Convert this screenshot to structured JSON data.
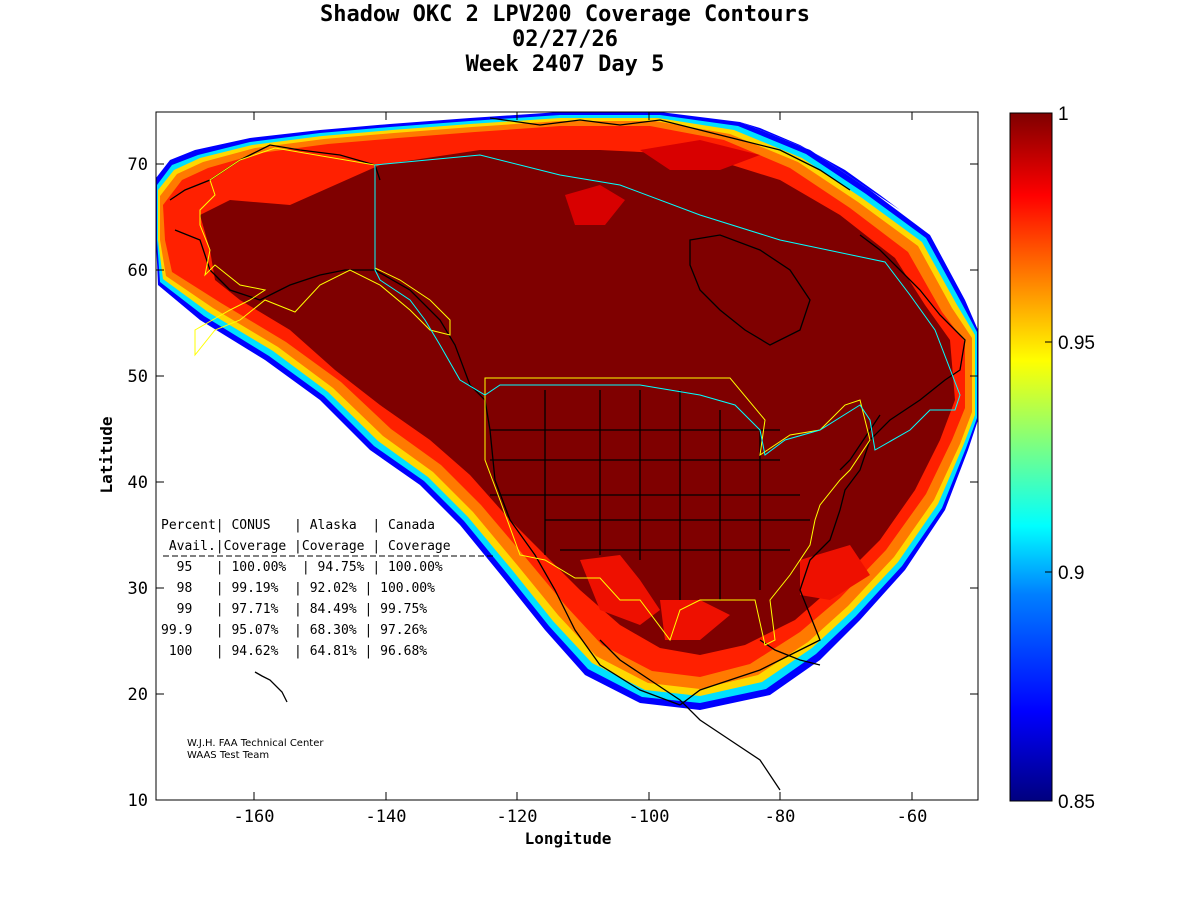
{
  "title": {
    "line1": "Shadow OKC 2 LPV200 Coverage Contours",
    "line2": "02/27/26",
    "line3": "Week 2407 Day 5"
  },
  "axes": {
    "xlabel": "Longitude",
    "ylabel": "Latitude",
    "xticks": [
      "-160",
      "-140",
      "-120",
      "-100",
      "-80",
      "-60"
    ],
    "yticks": [
      "70",
      "60",
      "50",
      "40",
      "30",
      "20",
      "10"
    ],
    "xlim": [
      -175,
      -50
    ],
    "ylim": [
      10,
      75
    ]
  },
  "colorbar": {
    "ticks": [
      "1",
      "0.95",
      "0.9",
      "0.85"
    ],
    "range": [
      0.85,
      1.0
    ],
    "colors": [
      "#00007f",
      "#0000ff",
      "#007fff",
      "#00ffff",
      "#7fff7f",
      "#ffff00",
      "#ff7f00",
      "#ff0000",
      "#7f0000"
    ]
  },
  "stats": {
    "header1": "Percent| CONUS   | Alaska  | Canada",
    "header2": " Avail.|Coverage |Coverage | Coverage",
    "rows": [
      "  95   | 100.00%  | 94.75% | 100.00%",
      "  98   | 99.19%  | 92.02% | 100.00%",
      "  99   | 97.71%  | 84.49% | 99.75%",
      "99.9   | 95.07%  | 68.30% | 97.26%",
      " 100   | 94.62%  | 64.81% | 96.68%"
    ]
  },
  "credit": {
    "line1": "W.J.H. FAA Technical Center",
    "line2": "WAAS Test Team"
  }
}
